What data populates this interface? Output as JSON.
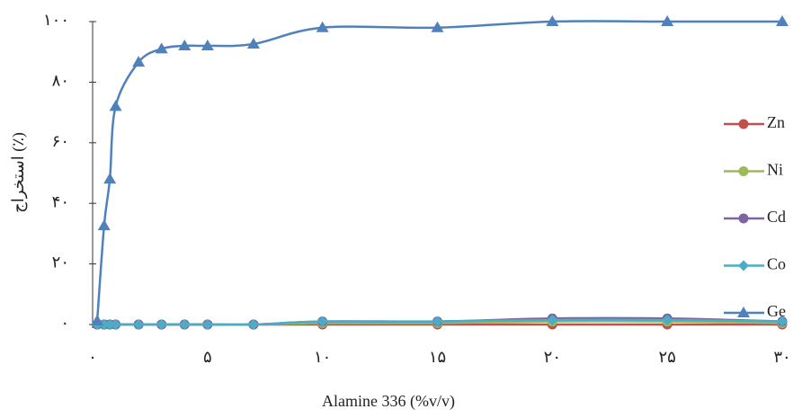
{
  "chart_data": {
    "type": "line",
    "x_label": "Alamine 336 (%v/v)",
    "y_label": "استخراج (٪)",
    "x": [
      0.2,
      0.5,
      0.75,
      1,
      2,
      3,
      4,
      5,
      7,
      10,
      15,
      20,
      25,
      30
    ],
    "xlim": [
      0,
      30
    ],
    "xticks": [
      {
        "value": 0,
        "label": "۰"
      },
      {
        "value": 5,
        "label": "۵"
      },
      {
        "value": 10,
        "label": "۱۰"
      },
      {
        "value": 15,
        "label": "۱۵"
      },
      {
        "value": 20,
        "label": "۲۰"
      },
      {
        "value": 25,
        "label": "۲۵"
      },
      {
        "value": 30,
        "label": "۳۰"
      }
    ],
    "ylim": [
      0,
      100
    ],
    "yticks": [
      {
        "value": 0,
        "label": "۰"
      },
      {
        "value": 20,
        "label": "۲۰"
      },
      {
        "value": 40,
        "label": "۴۰"
      },
      {
        "value": 60,
        "label": "۶۰"
      },
      {
        "value": 80,
        "label": "۸۰"
      },
      {
        "value": 100,
        "label": "۱۰۰"
      }
    ],
    "legend": "right",
    "series": [
      {
        "name": "Zn",
        "color": "#c0504d",
        "marker": "circle",
        "values": [
          0,
          0,
          0,
          0,
          0,
          0,
          0,
          0,
          0,
          0,
          0,
          0,
          0,
          0
        ]
      },
      {
        "name": "Ni",
        "color": "#9bbb59",
        "marker": "circle",
        "values": [
          0,
          0,
          0,
          0,
          0,
          0,
          0,
          0,
          0,
          0.5,
          0.5,
          1,
          1,
          0.5
        ]
      },
      {
        "name": "Cd",
        "color": "#8064a2",
        "marker": "circle",
        "values": [
          0,
          0,
          0,
          0,
          0,
          0,
          0,
          0,
          0,
          1,
          1,
          2,
          2,
          1
        ]
      },
      {
        "name": "Co",
        "color": "#4bacc6",
        "marker": "diamond",
        "values": [
          0,
          0,
          0,
          0,
          0,
          0,
          0,
          0,
          0,
          1,
          1,
          1.5,
          1.5,
          1
        ]
      },
      {
        "name": "Ge",
        "color": "#4f81bd",
        "marker": "triangle",
        "values": [
          1.2,
          32.6,
          48,
          72,
          86.6,
          91,
          92,
          92,
          92.6,
          98,
          98,
          100,
          100,
          100
        ]
      }
    ]
  }
}
